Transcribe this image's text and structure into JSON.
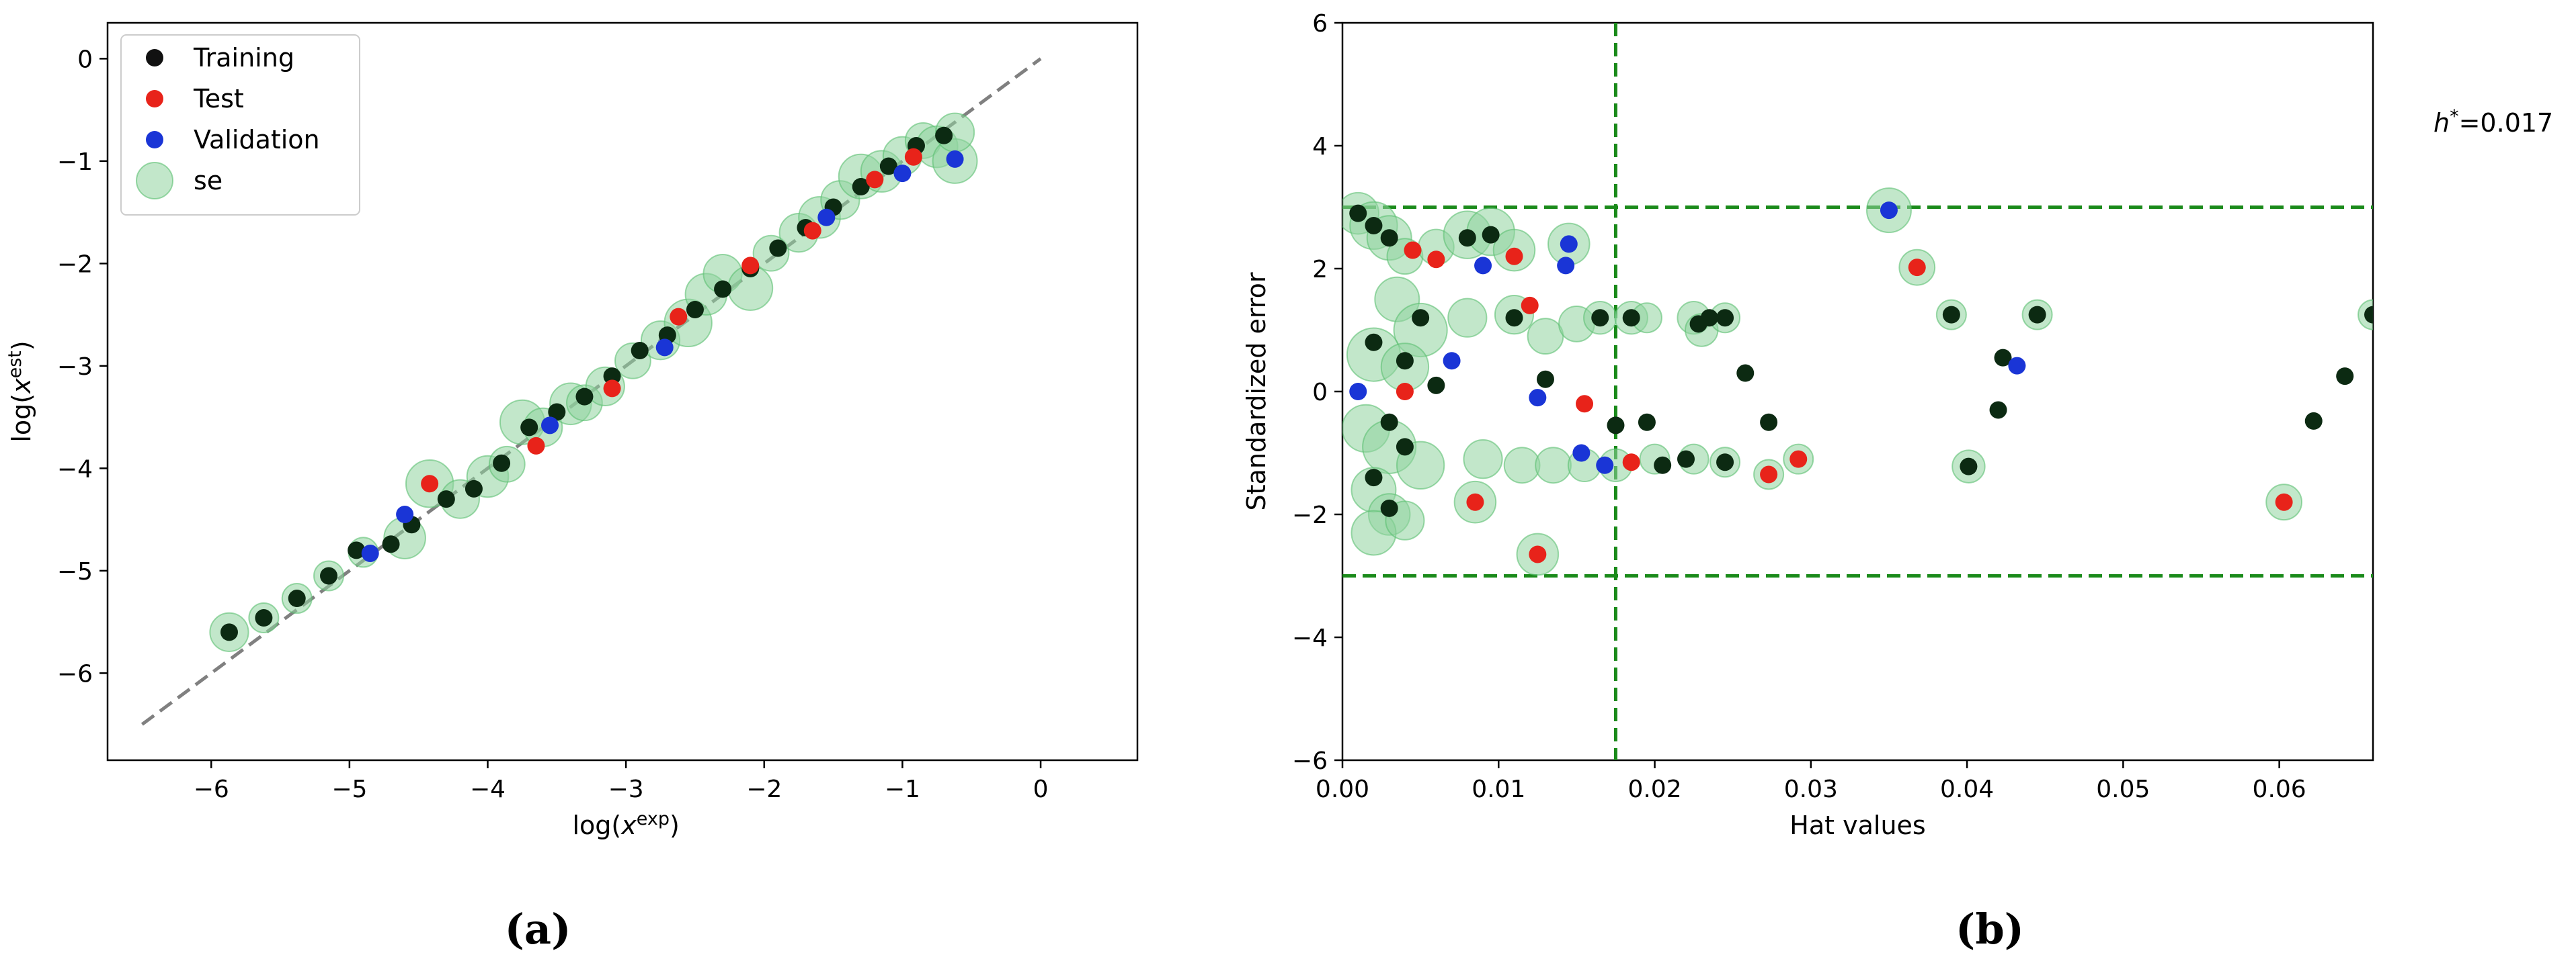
{
  "chart_data": [
    {
      "type": "scatter",
      "panel_label": "(a)",
      "xlabel": "log(x^exp)",
      "ylabel": "log(x^est)",
      "xlim": [
        -6.75,
        0.7
      ],
      "ylim": [
        -6.85,
        0.35
      ],
      "x_ticks": [
        -6,
        -5,
        -4,
        -3,
        -2,
        -1,
        0
      ],
      "y_ticks": [
        0,
        -1,
        -2,
        -3,
        -4,
        -5,
        -6
      ],
      "x_tick_labels": [
        "−6",
        "−5",
        "−4",
        "−3",
        "−2",
        "−1",
        "0"
      ],
      "y_tick_labels": [
        "0",
        "−1",
        "−2",
        "−3",
        "−4",
        "−5",
        "−6"
      ],
      "reference_line": {
        "x": [
          -6.5,
          0
        ],
        "y": [
          -6.5,
          0
        ],
        "style": "dashed",
        "color": "#808080"
      },
      "legend": {
        "placement": "top-left",
        "entries": [
          {
            "label": "Training",
            "color": "#111111"
          },
          {
            "label": "Test",
            "color": "#e8231a"
          },
          {
            "label": "Validation",
            "color": "#1a35d6"
          },
          {
            "label": "se",
            "color": "#8fd39f"
          }
        ]
      },
      "series": [
        {
          "name": "se",
          "marker": "halo",
          "color": "#8fd39f",
          "points": [
            [
              -5.87,
              -5.6,
              1.3
            ],
            [
              -5.62,
              -5.46,
              1.0
            ],
            [
              -5.38,
              -5.27,
              1.0
            ],
            [
              -5.15,
              -5.05,
              1.0
            ],
            [
              -4.9,
              -4.82,
              1.0
            ],
            [
              -4.6,
              -4.68,
              1.4
            ],
            [
              -4.42,
              -4.15,
              1.6
            ],
            [
              -4.2,
              -4.3,
              1.3
            ],
            [
              -4.0,
              -4.08,
              1.4
            ],
            [
              -3.86,
              -3.96,
              1.2
            ],
            [
              -3.75,
              -3.55,
              1.5
            ],
            [
              -3.6,
              -3.6,
              1.3
            ],
            [
              -3.4,
              -3.37,
              1.4
            ],
            [
              -3.3,
              -3.36,
              1.2
            ],
            [
              -3.15,
              -3.2,
              1.3
            ],
            [
              -2.95,
              -2.95,
              1.2
            ],
            [
              -2.75,
              -2.75,
              1.3
            ],
            [
              -2.55,
              -2.58,
              1.6
            ],
            [
              -2.42,
              -2.3,
              1.4
            ],
            [
              -2.3,
              -2.1,
              1.3
            ],
            [
              -2.1,
              -2.24,
              1.5
            ],
            [
              -1.95,
              -1.9,
              1.2
            ],
            [
              -1.75,
              -1.7,
              1.3
            ],
            [
              -1.6,
              -1.55,
              1.4
            ],
            [
              -1.45,
              -1.38,
              1.3
            ],
            [
              -1.3,
              -1.15,
              1.5
            ],
            [
              -1.15,
              -1.1,
              1.4
            ],
            [
              -1.0,
              -0.95,
              1.3
            ],
            [
              -0.85,
              -0.8,
              1.2
            ],
            [
              -0.75,
              -0.86,
              1.4
            ],
            [
              -0.62,
              -1.0,
              1.5
            ],
            [
              -0.62,
              -0.72,
              1.3
            ]
          ]
        },
        {
          "name": "Training",
          "marker": "dot",
          "color": "#0c2a12",
          "points": [
            [
              -5.87,
              -5.6
            ],
            [
              -5.62,
              -5.46
            ],
            [
              -5.38,
              -5.27
            ],
            [
              -5.15,
              -5.05
            ],
            [
              -4.95,
              -4.8
            ],
            [
              -4.7,
              -4.74
            ],
            [
              -4.55,
              -4.55
            ],
            [
              -4.3,
              -4.3
            ],
            [
              -4.1,
              -4.2
            ],
            [
              -3.9,
              -3.95
            ],
            [
              -3.7,
              -3.6
            ],
            [
              -3.5,
              -3.45
            ],
            [
              -3.3,
              -3.3
            ],
            [
              -3.1,
              -3.1
            ],
            [
              -2.9,
              -2.85
            ],
            [
              -2.7,
              -2.7
            ],
            [
              -2.5,
              -2.45
            ],
            [
              -2.3,
              -2.25
            ],
            [
              -2.1,
              -2.05
            ],
            [
              -1.9,
              -1.85
            ],
            [
              -1.7,
              -1.65
            ],
            [
              -1.5,
              -1.45
            ],
            [
              -1.3,
              -1.25
            ],
            [
              -1.1,
              -1.05
            ],
            [
              -0.9,
              -0.85
            ],
            [
              -0.7,
              -0.75
            ]
          ]
        },
        {
          "name": "Test",
          "marker": "dot",
          "color": "#e8231a",
          "points": [
            [
              -4.42,
              -4.15
            ],
            [
              -3.65,
              -3.78
            ],
            [
              -3.1,
              -3.22
            ],
            [
              -2.62,
              -2.52
            ],
            [
              -2.1,
              -2.02
            ],
            [
              -1.65,
              -1.68
            ],
            [
              -1.2,
              -1.18
            ],
            [
              -0.92,
              -0.96
            ]
          ]
        },
        {
          "name": "Validation",
          "marker": "dot",
          "color": "#1a35d6",
          "points": [
            [
              -4.85,
              -4.83
            ],
            [
              -4.6,
              -4.45
            ],
            [
              -3.55,
              -3.58
            ],
            [
              -2.72,
              -2.82
            ],
            [
              -1.55,
              -1.55
            ],
            [
              -1.0,
              -1.12
            ],
            [
              -0.62,
              -0.98
            ]
          ]
        }
      ]
    },
    {
      "type": "scatter",
      "panel_label": "(b)",
      "xlabel": "Hat values",
      "ylabel": "Standardized error",
      "xlim": [
        0.0,
        0.066
      ],
      "ylim": [
        -6,
        6
      ],
      "x_ticks": [
        0.0,
        0.01,
        0.02,
        0.03,
        0.04,
        0.05,
        0.06
      ],
      "y_ticks": [
        6,
        4,
        2,
        0,
        -2,
        -4,
        -6
      ],
      "x_tick_labels": [
        "0.00",
        "0.01",
        "0.02",
        "0.03",
        "0.04",
        "0.05",
        "0.06"
      ],
      "y_tick_labels": [
        "6",
        "4",
        "2",
        "0",
        "−2",
        "−4",
        "−6"
      ],
      "threshold_annotation": "h*=0.017",
      "reference_lines": [
        {
          "orientation": "vertical",
          "value": 0.0175,
          "style": "dashed",
          "color": "#1a8a1a"
        },
        {
          "orientation": "horizontal",
          "value": 3,
          "style": "dashed",
          "color": "#1a8a1a"
        },
        {
          "orientation": "horizontal",
          "value": -3,
          "style": "dashed",
          "color": "#1a8a1a"
        }
      ],
      "series": [
        {
          "name": "se",
          "marker": "halo",
          "color": "#8fd39f",
          "points": [
            [
              0.001,
              2.9,
              1.4
            ],
            [
              0.002,
              2.7,
              1.6
            ],
            [
              0.003,
              2.5,
              1.5
            ],
            [
              0.004,
              2.2,
              1.2
            ],
            [
              0.006,
              2.35,
              1.2
            ],
            [
              0.008,
              2.55,
              1.6
            ],
            [
              0.0095,
              2.6,
              1.6
            ],
            [
              0.011,
              2.3,
              1.4
            ],
            [
              0.0145,
              2.4,
              1.4
            ],
            [
              0.0035,
              1.5,
              1.5
            ],
            [
              0.005,
              1.0,
              1.8
            ],
            [
              0.002,
              0.6,
              1.8
            ],
            [
              0.004,
              0.4,
              1.6
            ],
            [
              0.0015,
              -0.6,
              1.6
            ],
            [
              0.003,
              -0.9,
              1.8
            ],
            [
              0.005,
              -1.2,
              1.6
            ],
            [
              0.002,
              -1.6,
              1.5
            ],
            [
              0.003,
              -2.0,
              1.4
            ],
            [
              0.002,
              -2.3,
              1.5
            ],
            [
              0.004,
              -2.1,
              1.3
            ],
            [
              0.0085,
              -1.8,
              1.4
            ],
            [
              0.0125,
              -2.65,
              1.4
            ],
            [
              0.008,
              1.2,
              1.3
            ],
            [
              0.011,
              1.25,
              1.3
            ],
            [
              0.013,
              0.9,
              1.2
            ],
            [
              0.015,
              1.1,
              1.2
            ],
            [
              0.0165,
              1.2,
              1.1
            ],
            [
              0.0185,
              1.2,
              1.1
            ],
            [
              0.0195,
              1.2,
              1.0
            ],
            [
              0.0225,
              1.2,
              1.1
            ],
            [
              0.023,
              1.0,
              1.1
            ],
            [
              0.0245,
              1.2,
              1.0
            ],
            [
              0.009,
              -1.1,
              1.3
            ],
            [
              0.0115,
              -1.2,
              1.2
            ],
            [
              0.0135,
              -1.2,
              1.2
            ],
            [
              0.0155,
              -1.2,
              1.1
            ],
            [
              0.0175,
              -1.2,
              1.1
            ],
            [
              0.02,
              -1.1,
              1.0
            ],
            [
              0.0225,
              -1.1,
              1.0
            ],
            [
              0.0245,
              -1.15,
              1.0
            ],
            [
              0.0273,
              -1.35,
              1.0
            ],
            [
              0.0292,
              -1.1,
              1.0
            ],
            [
              0.035,
              2.95,
              1.5
            ],
            [
              0.0368,
              2.02,
              1.2
            ],
            [
              0.039,
              1.25,
              1.0
            ],
            [
              0.0401,
              -1.22,
              1.1
            ],
            [
              0.0445,
              1.25,
              1.0
            ],
            [
              0.0603,
              -1.8,
              1.2
            ],
            [
              0.066,
              1.25,
              1.0
            ]
          ]
        },
        {
          "name": "Training",
          "marker": "dot",
          "color": "#0c2a12",
          "points": [
            [
              0.001,
              2.9
            ],
            [
              0.002,
              2.7
            ],
            [
              0.003,
              2.5
            ],
            [
              0.005,
              1.2
            ],
            [
              0.002,
              0.8
            ],
            [
              0.004,
              0.5
            ],
            [
              0.006,
              0.1
            ],
            [
              0.003,
              -0.5
            ],
            [
              0.004,
              -0.9
            ],
            [
              0.002,
              -1.4
            ],
            [
              0.003,
              -1.9
            ],
            [
              0.008,
              2.5
            ],
            [
              0.0095,
              2.55
            ],
            [
              0.011,
              1.2
            ],
            [
              0.013,
              0.2
            ],
            [
              0.0165,
              1.2
            ],
            [
              0.0175,
              -0.55
            ],
            [
              0.0185,
              1.2
            ],
            [
              0.0195,
              -0.5
            ],
            [
              0.0205,
              -1.2
            ],
            [
              0.022,
              -1.1
            ],
            [
              0.0228,
              1.1
            ],
            [
              0.0235,
              1.2
            ],
            [
              0.0245,
              -1.15
            ],
            [
              0.0245,
              1.2
            ],
            [
              0.0258,
              0.3
            ],
            [
              0.0273,
              -0.5
            ],
            [
              0.039,
              1.25
            ],
            [
              0.0401,
              -1.22
            ],
            [
              0.042,
              -0.3
            ],
            [
              0.0423,
              0.55
            ],
            [
              0.0445,
              1.25
            ],
            [
              0.0622,
              -0.48
            ],
            [
              0.0642,
              0.25
            ],
            [
              0.066,
              1.25
            ]
          ]
        },
        {
          "name": "Test",
          "marker": "dot",
          "color": "#e8231a",
          "points": [
            [
              0.0045,
              2.3
            ],
            [
              0.006,
              2.15
            ],
            [
              0.011,
              2.2
            ],
            [
              0.012,
              1.4
            ],
            [
              0.0085,
              -1.8
            ],
            [
              0.0125,
              -2.65
            ],
            [
              0.0155,
              -0.2
            ],
            [
              0.0185,
              -1.15
            ],
            [
              0.0273,
              -1.35
            ],
            [
              0.0292,
              -1.1
            ],
            [
              0.0368,
              2.02
            ],
            [
              0.0603,
              -1.8
            ],
            [
              0.004,
              0.0
            ]
          ]
        },
        {
          "name": "Validation",
          "marker": "dot",
          "color": "#1a35d6",
          "points": [
            [
              0.009,
              2.05
            ],
            [
              0.0143,
              2.05
            ],
            [
              0.0145,
              2.4
            ],
            [
              0.0125,
              -0.1
            ],
            [
              0.0153,
              -1.0
            ],
            [
              0.0168,
              -1.2
            ],
            [
              0.035,
              2.95
            ],
            [
              0.0432,
              0.42
            ],
            [
              0.001,
              0.0
            ],
            [
              0.007,
              0.5
            ]
          ]
        }
      ]
    }
  ]
}
